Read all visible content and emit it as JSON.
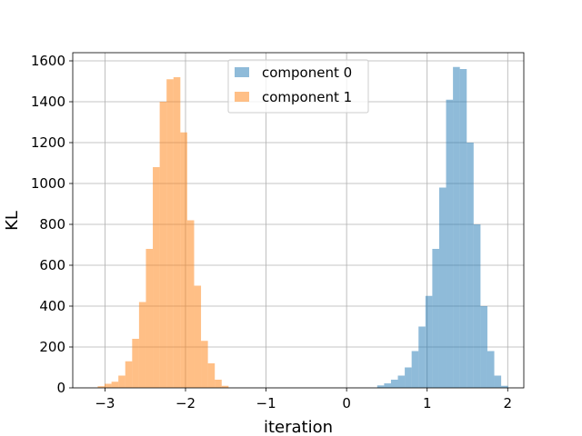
{
  "chart_data": {
    "type": "bar",
    "chart_kind": "histogram",
    "title": "",
    "xlabel": "iteration",
    "ylabel": "KL",
    "xlim": [
      -3.4,
      2.2
    ],
    "ylim": [
      0,
      1640
    ],
    "xticks": [
      -3,
      -2,
      -1,
      0,
      1,
      2
    ],
    "xtick_labels": [
      "−3",
      "−2",
      "−1",
      "0",
      "1",
      "2"
    ],
    "yticks": [
      0,
      200,
      400,
      600,
      800,
      1000,
      1200,
      1400,
      1600
    ],
    "ytick_labels": [
      "0",
      "200",
      "400",
      "600",
      "800",
      "1000",
      "1200",
      "1400",
      "1600"
    ],
    "grid": true,
    "legend_position": "upper center",
    "bin_width": 0.0855,
    "series": [
      {
        "name": "component 0",
        "color": "#1f77b4",
        "alpha": 0.5,
        "bin_start": 0.38,
        "values": [
          12,
          22,
          40,
          60,
          100,
          180,
          300,
          450,
          680,
          980,
          1410,
          1570,
          1560,
          1200,
          800,
          400,
          180,
          60,
          10
        ]
      },
      {
        "name": "component 1",
        "color": "#ff7f0e",
        "alpha": 0.5,
        "bin_start": -3.09,
        "values": [
          8,
          20,
          30,
          60,
          130,
          240,
          420,
          680,
          1080,
          1400,
          1510,
          1520,
          1250,
          820,
          500,
          230,
          120,
          40,
          10
        ]
      }
    ]
  }
}
